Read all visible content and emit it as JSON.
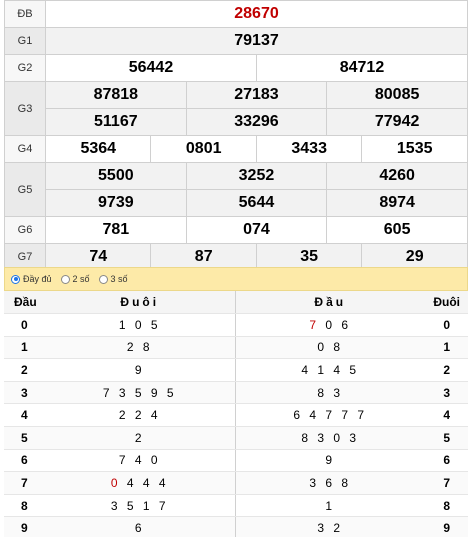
{
  "prizes": {
    "db": {
      "label": "ĐB",
      "numbers": [
        "28670"
      ]
    },
    "g1": {
      "label": "G1",
      "numbers": [
        "79137"
      ]
    },
    "g2": {
      "label": "G2",
      "numbers": [
        "56442",
        "84712"
      ]
    },
    "g3": {
      "label": "G3",
      "numbers": [
        "87818",
        "27183",
        "80085",
        "51167",
        "33296",
        "77942"
      ]
    },
    "g4": {
      "label": "G4",
      "numbers": [
        "5364",
        "0801",
        "3433",
        "1535"
      ]
    },
    "g5": {
      "label": "G5",
      "numbers": [
        "5500",
        "3252",
        "4260",
        "9739",
        "5644",
        "8974"
      ]
    },
    "g6": {
      "label": "G6",
      "numbers": [
        "781",
        "074",
        "605"
      ]
    },
    "g7": {
      "label": "G7",
      "numbers": [
        "74",
        "87",
        "35",
        "29"
      ]
    }
  },
  "options": [
    {
      "label": "Đầy đủ",
      "selected": true
    },
    {
      "label": "2 số",
      "selected": false
    },
    {
      "label": "3 số",
      "selected": false
    }
  ],
  "loto": {
    "headers": {
      "dau_left": "Đầu",
      "duoi_left": "Đuôi",
      "dau_right": "Đầu",
      "duoi_right": "Đuôi"
    },
    "highlight_color": "#c00000",
    "rows": [
      {
        "dau": "0",
        "duoi": "1 0 5",
        "dau_r": "7 0 6",
        "duoi_r": "0"
      },
      {
        "dau": "1",
        "duoi": "2 8",
        "dau_r": "0 8",
        "duoi_r": "1"
      },
      {
        "dau": "2",
        "duoi": "9",
        "dau_r": "4 1 4 5",
        "duoi_r": "2"
      },
      {
        "dau": "3",
        "duoi": "7 3 5 9 5",
        "dau_r": "8 3",
        "duoi_r": "3"
      },
      {
        "dau": "4",
        "duoi": "2 2 4",
        "dau_r": "6 4 7 7 7",
        "duoi_r": "4"
      },
      {
        "dau": "5",
        "duoi": "2",
        "dau_r": "8 3 0 3",
        "duoi_r": "5"
      },
      {
        "dau": "6",
        "duoi": "7 4 0",
        "dau_r": "9",
        "duoi_r": "6"
      },
      {
        "dau": "7",
        "duoi": "0 4 4 4",
        "dau_r": "3 6 8",
        "duoi_r": "7"
      },
      {
        "dau": "8",
        "duoi": "3 5 1 7",
        "dau_r": "1",
        "duoi_r": "8"
      },
      {
        "dau": "9",
        "duoi": "6",
        "dau_r": "3 2",
        "duoi_r": "9"
      }
    ]
  }
}
